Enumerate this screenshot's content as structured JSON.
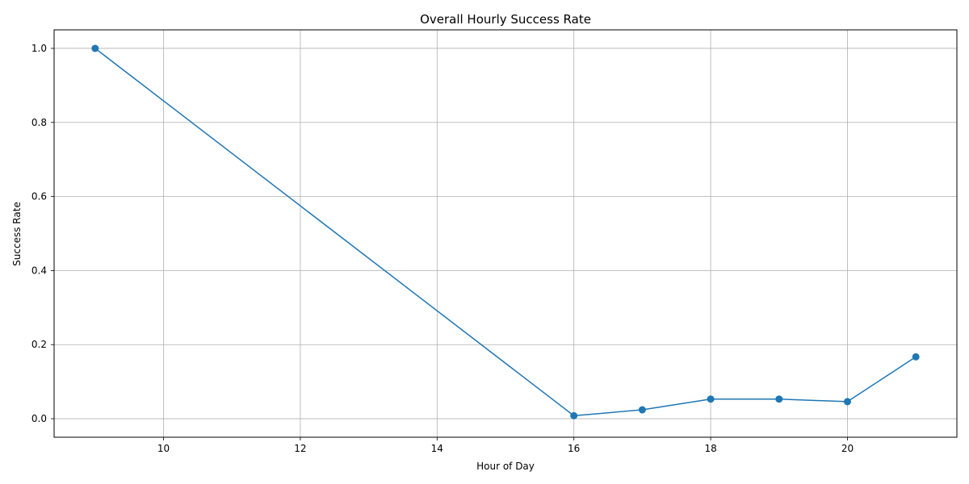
{
  "chart_data": {
    "type": "line",
    "title": "Overall Hourly Success Rate",
    "xlabel": "Hour of Day",
    "ylabel": "Success Rate",
    "xlim": [
      8.4,
      21.6
    ],
    "ylim": [
      -0.05,
      1.05
    ],
    "xticks": [
      10,
      12,
      14,
      16,
      18,
      20
    ],
    "yticks": [
      0.0,
      0.2,
      0.4,
      0.6,
      0.8,
      1.0
    ],
    "xtick_labels": [
      "10",
      "12",
      "14",
      "16",
      "18",
      "20"
    ],
    "ytick_labels": [
      "0.0",
      "0.2",
      "0.4",
      "0.6",
      "0.8",
      "1.0"
    ],
    "grid": true,
    "series": [
      {
        "color": "#1f77b4",
        "marker": "circle",
        "x": [
          9,
          16,
          17,
          18,
          19,
          20,
          21
        ],
        "y": [
          1.0,
          0.008,
          0.024,
          0.053,
          0.053,
          0.046,
          0.167
        ]
      }
    ]
  }
}
